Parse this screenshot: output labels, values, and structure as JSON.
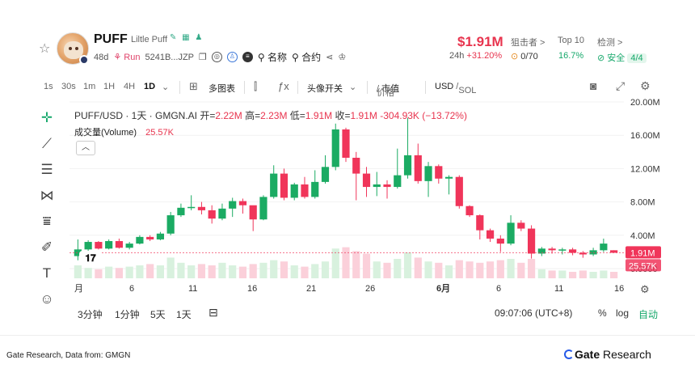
{
  "token": {
    "symbol": "PUFF",
    "full_name": "Liltle Puff",
    "age": "48d",
    "run_label": "Run",
    "address": "5241B...JZP",
    "menu_name": "名称",
    "menu_contract": "合约"
  },
  "market": {
    "price": "$1.91M",
    "change_label": "24h",
    "change_value": "+31.20%",
    "sniper_label": "狙击者 >",
    "sniper_value": "0/70",
    "top10_label": "Top 10",
    "top10_value": "16.7%",
    "check_label": "检测 >",
    "check_value": "安全",
    "check_count": "4/4"
  },
  "toolbar": {
    "intervals": [
      "1s",
      "30s",
      "1m",
      "1H",
      "4H",
      "1D"
    ],
    "selected_interval": "1D",
    "multi_chart": "多图表",
    "avatar_toggle": "头像开关",
    "price": "价格",
    "mcap": "市值",
    "usd": "USD",
    "sol": "SOL"
  },
  "legend": {
    "pair": "PUFF/USD · 1天 · GMGN.AI",
    "open_label": "开=",
    "open": "2.22M",
    "high_label": "高=",
    "high": "2.23M",
    "low_label": "低=",
    "low": "1.91M",
    "close_label": "收=",
    "close": "1.91M",
    "change": "-304.93K (−13.72%)",
    "volume_label": "成交量(Volume)",
    "volume": "25.57K"
  },
  "bottom": {
    "ranges": [
      "3分钟",
      "1分钟",
      "5天",
      "1天"
    ],
    "time": "09:07:06 (UTC+8)",
    "percent": "%",
    "log": "log",
    "auto": "自动"
  },
  "footer": {
    "source": "Gate Research, Data from: GMGN",
    "brand_a": "Gate",
    "brand_b": " Research"
  },
  "colors": {
    "up": "#1bab63",
    "down": "#f0355a",
    "up_vol": "#d8f1de",
    "down_vol": "#fbd0da"
  },
  "chart_data": {
    "type": "candlestick",
    "y_ticks": [
      "20.00M",
      "16.00M",
      "12.00M",
      "8.00M",
      "4.00M",
      "0.0000"
    ],
    "ylim": [
      0,
      20
    ],
    "x_ticks": [
      "月",
      "6",
      "11",
      "16",
      "21",
      "26",
      "6月",
      "6",
      "11",
      "16"
    ],
    "last_price_label": "1.91M",
    "last_volume_label": "25.57K",
    "candles": [
      [
        1.5,
        2.3,
        1.0,
        3.5,
        1.0
      ],
      [
        2.3,
        3.2,
        2.0,
        3.4,
        0.8
      ],
      [
        3.2,
        2.4,
        2.3,
        3.3,
        0.7
      ],
      [
        2.4,
        3.3,
        2.3,
        3.5,
        0.9
      ],
      [
        3.3,
        2.5,
        2.4,
        3.6,
        0.8
      ],
      [
        2.5,
        3.0,
        2.3,
        3.2,
        0.9
      ],
      [
        3.0,
        3.8,
        2.9,
        4.0,
        1.0
      ],
      [
        3.8,
        3.5,
        3.3,
        4.0,
        1.1
      ],
      [
        3.5,
        4.2,
        3.4,
        4.4,
        1.0
      ],
      [
        4.2,
        6.4,
        4.0,
        6.8,
        1.6
      ],
      [
        6.4,
        7.3,
        6.2,
        7.8,
        1.2
      ],
      [
        7.3,
        7.4,
        7.0,
        8.8,
        1.0
      ],
      [
        7.4,
        7.0,
        6.5,
        8.0,
        1.1
      ],
      [
        7.0,
        6.0,
        5.4,
        7.6,
        1.0
      ],
      [
        6.0,
        7.2,
        5.8,
        7.8,
        1.2
      ],
      [
        7.2,
        8.1,
        6.2,
        8.5,
        1.0
      ],
      [
        8.1,
        7.6,
        6.6,
        8.4,
        0.9
      ],
      [
        7.6,
        5.9,
        4.5,
        7.5,
        1.1
      ],
      [
        5.9,
        8.6,
        5.8,
        8.8,
        1.2
      ],
      [
        8.6,
        11.4,
        8.4,
        12.4,
        1.4
      ],
      [
        11.4,
        8.5,
        8.2,
        12.0,
        1.3
      ],
      [
        8.5,
        10.1,
        8.2,
        10.3,
        1.0
      ],
      [
        10.1,
        8.6,
        8.4,
        11.0,
        0.9
      ],
      [
        8.6,
        10.4,
        8.4,
        11.8,
        1.1
      ],
      [
        10.4,
        12.2,
        10.2,
        13.6,
        1.3
      ],
      [
        12.2,
        16.7,
        11.8,
        17.4,
        2.3
      ],
      [
        16.7,
        13.3,
        12.8,
        16.9,
        2.4
      ],
      [
        13.3,
        11.4,
        8.2,
        14.0,
        2.1
      ],
      [
        11.4,
        9.8,
        8.6,
        12.2,
        1.9
      ],
      [
        9.8,
        10.1,
        8.7,
        11.6,
        1.3
      ],
      [
        10.1,
        9.8,
        8.4,
        10.6,
        1.2
      ],
      [
        9.8,
        11.2,
        9.6,
        14.4,
        1.5
      ],
      [
        11.2,
        13.6,
        10.8,
        18.1,
        2.0
      ],
      [
        13.6,
        10.5,
        10.2,
        15.0,
        1.6
      ],
      [
        10.5,
        12.3,
        8.6,
        12.8,
        1.3
      ],
      [
        12.3,
        10.8,
        10.2,
        12.5,
        1.2
      ],
      [
        10.8,
        11.0,
        8.9,
        11.2,
        1.0
      ],
      [
        11.0,
        7.5,
        7.2,
        11.2,
        1.4
      ],
      [
        7.5,
        6.4,
        6.2,
        7.6,
        1.3
      ],
      [
        6.4,
        4.6,
        3.5,
        6.5,
        1.2
      ],
      [
        4.6,
        3.6,
        3.2,
        4.8,
        1.3
      ],
      [
        3.6,
        3.0,
        2.0,
        4.0,
        1.4
      ],
      [
        3.0,
        5.5,
        2.8,
        6.4,
        1.5
      ],
      [
        5.5,
        4.8,
        4.5,
        5.8,
        1.2
      ],
      [
        4.8,
        1.8,
        1.2,
        5.2,
        1.5
      ],
      [
        1.8,
        2.4,
        1.5,
        2.6,
        0.7
      ],
      [
        2.4,
        2.2,
        1.8,
        2.6,
        0.6
      ],
      [
        2.2,
        2.3,
        1.7,
        2.5,
        0.6
      ],
      [
        2.3,
        1.9,
        1.6,
        2.5,
        0.5
      ],
      [
        1.9,
        1.7,
        1.3,
        2.1,
        0.6
      ],
      [
        1.7,
        2.2,
        1.5,
        2.5,
        0.5
      ],
      [
        2.2,
        3.0,
        2.0,
        3.6,
        0.6
      ],
      [
        2.2,
        1.9,
        1.9,
        2.2,
        0.5
      ]
    ]
  }
}
